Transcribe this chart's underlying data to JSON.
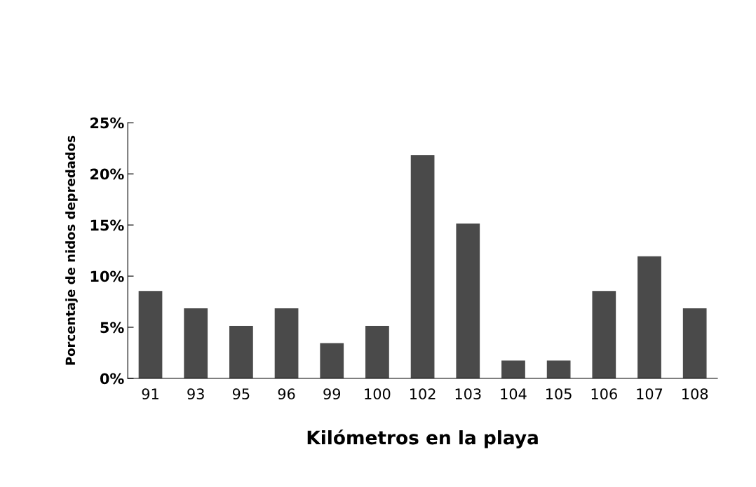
{
  "chart_data": {
    "type": "bar",
    "xlabel": "Kilómetros en la playa",
    "ylabel": "Porcentaje de nidos depredados",
    "categories": [
      "91",
      "93",
      "95",
      "96",
      "99",
      "100",
      "102",
      "103",
      "104",
      "105",
      "106",
      "107",
      "108"
    ],
    "values": [
      8.5,
      6.8,
      5.1,
      6.8,
      3.4,
      5.1,
      21.8,
      15.1,
      1.7,
      1.7,
      8.5,
      11.9,
      6.8
    ],
    "color": "#4a4a4a",
    "ylim": [
      0,
      25
    ],
    "yticks": [
      {
        "value": 0,
        "label": "0%"
      },
      {
        "value": 5,
        "label": "5%"
      },
      {
        "value": 10,
        "label": "10%"
      },
      {
        "value": 15,
        "label": "15%"
      },
      {
        "value": 20,
        "label": "20%"
      },
      {
        "value": 25,
        "label": "25%"
      }
    ],
    "grid": false,
    "legend": false
  }
}
